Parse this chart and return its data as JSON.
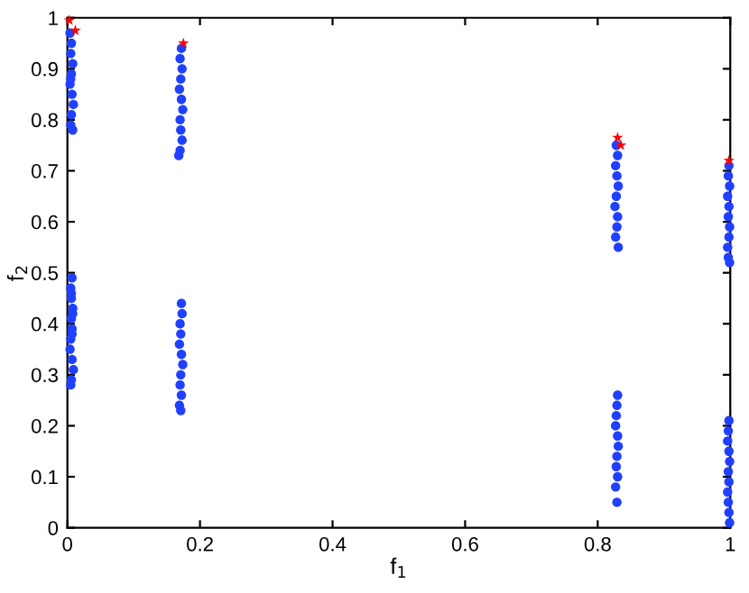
{
  "chart_data": {
    "type": "scatter",
    "xlabel": "f$_{1}$",
    "ylabel": "f$_{2}$",
    "xlim": [
      0,
      1
    ],
    "ylim": [
      0,
      1
    ],
    "xticks": [
      0,
      0.2,
      0.4,
      0.6,
      0.8,
      1
    ],
    "yticks": [
      0,
      0.1,
      0.2,
      0.3,
      0.4,
      0.5,
      0.6,
      0.7,
      0.8,
      0.9,
      1
    ],
    "grid": false,
    "legend": false,
    "series": [
      {
        "color": "#2040ff",
        "marker": "circle",
        "x": [
          0.004,
          0.006,
          0.005,
          0.008,
          0.006,
          0.004,
          0.007,
          0.009,
          0.006,
          0.005,
          0.008,
          0.007,
          0.005,
          0.006,
          0.008,
          0.006,
          0.007,
          0.005,
          0.004,
          0.007,
          0.009,
          0.006,
          0.005,
          0.007,
          0.008,
          0.006,
          0.005,
          0.172,
          0.17,
          0.173,
          0.171,
          0.169,
          0.172,
          0.174,
          0.17,
          0.171,
          0.173,
          0.17,
          0.168,
          0.172,
          0.173,
          0.17,
          0.171,
          0.169,
          0.172,
          0.174,
          0.171,
          0.17,
          0.172,
          0.169,
          0.171,
          0.828,
          0.83,
          0.827,
          0.829,
          0.831,
          0.828,
          0.826,
          0.83,
          0.829,
          0.827,
          0.831,
          0.83,
          0.829,
          0.828,
          0.827,
          0.83,
          0.831,
          0.829,
          0.828,
          0.83,
          0.827,
          0.829,
          0.998,
          0.997,
          0.999,
          0.996,
          0.998,
          0.997,
          0.999,
          0.998,
          0.996,
          0.997,
          0.999,
          0.998,
          0.997,
          0.996,
          0.998,
          0.999,
          0.997,
          0.998,
          0.996,
          0.997,
          0.998,
          0.999
        ],
        "values": [
          0.97,
          0.95,
          0.93,
          0.91,
          0.89,
          0.87,
          0.85,
          0.83,
          0.81,
          0.79,
          0.78,
          0.49,
          0.47,
          0.45,
          0.43,
          0.41,
          0.39,
          0.37,
          0.35,
          0.33,
          0.31,
          0.29,
          0.28,
          0.38,
          0.42,
          0.46,
          0.88,
          0.94,
          0.92,
          0.9,
          0.88,
          0.86,
          0.84,
          0.82,
          0.8,
          0.78,
          0.76,
          0.74,
          0.73,
          0.44,
          0.42,
          0.4,
          0.38,
          0.36,
          0.34,
          0.32,
          0.3,
          0.28,
          0.26,
          0.24,
          0.23,
          0.75,
          0.73,
          0.71,
          0.69,
          0.67,
          0.65,
          0.63,
          0.61,
          0.59,
          0.57,
          0.55,
          0.26,
          0.24,
          0.22,
          0.2,
          0.18,
          0.16,
          0.14,
          0.12,
          0.1,
          0.08,
          0.05,
          0.71,
          0.69,
          0.67,
          0.65,
          0.63,
          0.61,
          0.59,
          0.57,
          0.55,
          0.53,
          0.52,
          0.21,
          0.19,
          0.17,
          0.15,
          0.13,
          0.11,
          0.09,
          0.07,
          0.05,
          0.03,
          0.01
        ]
      },
      {
        "color": "#ff0000",
        "marker": "star",
        "x": [
          0.003,
          0.012,
          0.175,
          0.83,
          0.835,
          0.998
        ],
        "values": [
          0.995,
          0.975,
          0.95,
          0.765,
          0.75,
          0.72
        ]
      }
    ]
  }
}
